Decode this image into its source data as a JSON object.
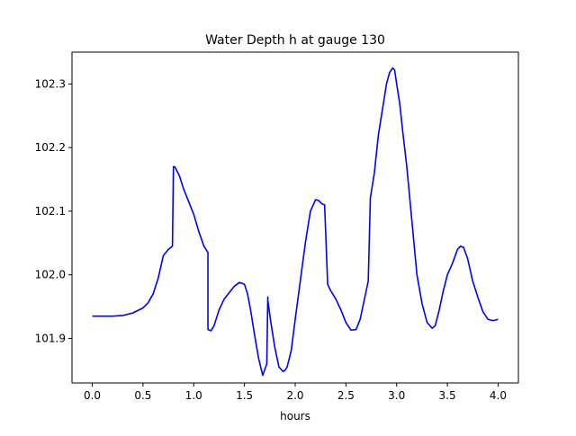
{
  "chart_data": {
    "type": "line",
    "title": "Water Depth h at gauge 130",
    "xlabel": "hours",
    "ylabel": "",
    "xlim": [
      -0.2,
      4.2
    ],
    "ylim": [
      101.83,
      102.35
    ],
    "xticks": [
      0.0,
      0.5,
      1.0,
      1.5,
      2.0,
      2.5,
      3.0,
      3.5,
      4.0
    ],
    "xtick_labels": [
      "0.0",
      "0.5",
      "1.0",
      "1.5",
      "2.0",
      "2.5",
      "3.0",
      "3.5",
      "4.0"
    ],
    "yticks": [
      101.9,
      102.0,
      102.1,
      102.2,
      102.3
    ],
    "ytick_labels": [
      "101.9",
      "102.0",
      "102.1",
      "102.2",
      "102.3"
    ],
    "grid": false,
    "legend": "none",
    "line_color": "#0000ff",
    "series": [
      {
        "x": [
          0.0,
          0.1,
          0.2,
          0.3,
          0.4,
          0.5,
          0.55,
          0.6,
          0.65,
          0.7,
          0.75,
          0.79,
          0.8,
          0.81,
          0.82,
          0.86,
          0.9,
          0.95,
          1.0,
          1.05,
          1.1,
          1.14,
          1.14,
          1.17,
          1.2,
          1.25,
          1.3,
          1.35,
          1.4,
          1.45,
          1.5,
          1.53,
          1.56,
          1.6,
          1.64,
          1.68,
          1.72,
          1.73,
          1.73,
          1.76,
          1.8,
          1.84,
          1.88,
          1.9,
          1.92,
          1.96,
          2.0,
          2.05,
          2.1,
          2.15,
          2.2,
          2.23,
          2.26,
          2.29,
          2.32,
          2.32,
          2.35,
          2.4,
          2.45,
          2.5,
          2.55,
          2.6,
          2.64,
          2.68,
          2.72,
          2.74,
          2.74,
          2.78,
          2.82,
          2.86,
          2.9,
          2.93,
          2.96,
          2.98,
          3.0,
          3.03,
          3.06,
          3.1,
          3.15,
          3.2,
          3.25,
          3.3,
          3.35,
          3.38,
          3.42,
          3.46,
          3.5,
          3.55,
          3.6,
          3.63,
          3.66,
          3.7,
          3.75,
          3.8,
          3.85,
          3.9,
          3.95,
          4.0
        ],
        "y": [
          101.935,
          101.935,
          101.935,
          101.936,
          101.94,
          101.948,
          101.956,
          101.97,
          101.995,
          102.03,
          102.04,
          102.045,
          102.17,
          102.17,
          102.168,
          102.155,
          102.135,
          102.115,
          102.095,
          102.068,
          102.045,
          102.035,
          101.914,
          101.912,
          101.92,
          101.945,
          101.962,
          101.972,
          101.982,
          101.988,
          101.985,
          101.97,
          101.945,
          101.905,
          101.868,
          101.842,
          101.86,
          101.965,
          101.96,
          101.925,
          101.885,
          101.855,
          101.848,
          101.85,
          101.855,
          101.88,
          101.93,
          101.99,
          102.05,
          102.1,
          102.118,
          102.117,
          102.112,
          102.11,
          101.985,
          101.985,
          101.975,
          101.962,
          101.945,
          101.925,
          101.913,
          101.914,
          101.93,
          101.96,
          101.99,
          102.115,
          102.12,
          102.16,
          102.22,
          102.26,
          102.3,
          102.318,
          102.325,
          102.322,
          102.3,
          102.27,
          102.225,
          102.17,
          102.085,
          102.0,
          101.955,
          101.925,
          101.916,
          101.92,
          101.945,
          101.975,
          102.0,
          102.018,
          102.04,
          102.045,
          102.043,
          102.025,
          101.99,
          101.965,
          101.942,
          101.93,
          101.928,
          101.93
        ]
      }
    ]
  }
}
